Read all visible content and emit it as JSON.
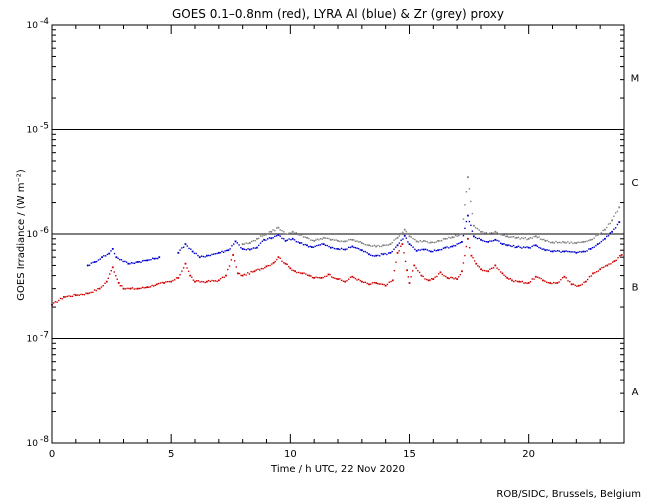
{
  "chart_data": {
    "type": "scatter",
    "title": "GOES 0.1–0.8nm (red), LYRA Al (blue) & Zr (grey) proxy",
    "xlabel": "Time / h UTC, 22 Nov 2020",
    "ylabel": "GOES Irradiance / (W m⁻²)",
    "xlim": [
      0,
      24
    ],
    "ylim": [
      1e-08,
      0.0001
    ],
    "yscale": "log",
    "x_ticks": [
      0,
      5,
      10,
      15,
      20
    ],
    "x_tick_labels": [
      "0",
      "5",
      "10",
      "15",
      "20"
    ],
    "y_ticks": [
      1e-08,
      1e-07,
      1e-06,
      1e-05,
      0.0001
    ],
    "y_tick_labels": [
      {
        "base": "10",
        "exp": "-8"
      },
      {
        "base": "10",
        "exp": "-7"
      },
      {
        "base": "10",
        "exp": "-6"
      },
      {
        "base": "10",
        "exp": "-5"
      },
      {
        "base": "10",
        "exp": "-4"
      }
    ],
    "reference_lines": [
      1e-07,
      1e-06,
      1e-05
    ],
    "flare_classes": [
      {
        "label": "A",
        "value": 3.16e-08
      },
      {
        "label": "B",
        "value": 3.16e-07
      },
      {
        "label": "C",
        "value": 3.16e-06
      },
      {
        "label": "M",
        "value": 3.16e-05
      }
    ],
    "series": [
      {
        "color": "#d00000",
        "x": [
          0.0,
          0.5,
          1.0,
          1.5,
          2.0,
          2.3,
          2.55,
          2.8,
          3.0,
          3.3,
          3.6,
          4.0,
          4.4,
          4.7,
          5.0,
          5.3,
          5.6,
          5.8,
          6.0,
          6.5,
          7.0,
          7.3,
          7.6,
          7.8,
          8.0,
          8.5,
          9.0,
          9.3,
          9.5,
          9.8,
          10.0,
          10.2,
          10.5,
          10.8,
          11.0,
          11.3,
          11.6,
          12.0,
          12.3,
          12.6,
          13.0,
          13.3,
          13.6,
          14.0,
          14.3,
          14.5,
          14.7,
          14.9,
          15.0,
          15.2,
          15.5,
          15.8,
          16.0,
          16.3,
          16.6,
          17.0,
          17.2,
          17.45,
          17.6,
          17.8,
          18.0,
          18.3,
          18.6,
          18.9,
          19.1,
          19.3,
          19.6,
          20.0,
          20.3,
          20.6,
          20.9,
          21.2,
          21.5,
          21.8,
          22.1,
          22.4,
          22.7,
          23.0,
          23.3,
          23.6,
          23.9
        ],
        "y": [
          2.1e-07,
          2.5e-07,
          2.6e-07,
          2.7e-07,
          3e-07,
          3.5e-07,
          4.8e-07,
          3.4e-07,
          3e-07,
          3e-07,
          3e-07,
          3.1e-07,
          3.3e-07,
          3.4e-07,
          3.5e-07,
          3.8e-07,
          5.2e-07,
          4e-07,
          3.5e-07,
          3.5e-07,
          3.6e-07,
          4e-07,
          6.3e-07,
          4.2e-07,
          4e-07,
          4.4e-07,
          4.9e-07,
          5.3e-07,
          6e-07,
          5.2e-07,
          4.7e-07,
          4.4e-07,
          4.2e-07,
          4e-07,
          3.8e-07,
          3.8e-07,
          4.1e-07,
          3.7e-07,
          3.5e-07,
          3.9e-07,
          3.5e-07,
          3.3e-07,
          3.4e-07,
          3.2e-07,
          3.6e-07,
          6.6e-07,
          8e-07,
          4.5e-07,
          3.4e-07,
          5e-07,
          4e-07,
          3.6e-07,
          3.7e-07,
          4.3e-07,
          3.8e-07,
          3.7e-07,
          4.4e-07,
          9e-07,
          6.2e-07,
          5.2e-07,
          4.6e-07,
          4.4e-07,
          5e-07,
          4.2e-07,
          3.8e-07,
          3.6e-07,
          3.5e-07,
          3.4e-07,
          3.9e-07,
          3.6e-07,
          3.4e-07,
          3.4e-07,
          3.9e-07,
          3.3e-07,
          3.2e-07,
          3.5e-07,
          4.2e-07,
          4.6e-07,
          5e-07,
          5.5e-07,
          6.3e-07
        ]
      },
      {
        "color": "#0000cc",
        "x": [
          1.5,
          1.8,
          2.1,
          2.4,
          2.55,
          2.7,
          3.2,
          3.6,
          4.0,
          4.3,
          4.5,
          5.3,
          5.6,
          5.9,
          6.2,
          6.5,
          7.0,
          7.4,
          7.7,
          8.0,
          8.3,
          8.6,
          8.9,
          9.2,
          9.5,
          9.8,
          10.1,
          10.4,
          10.7,
          10.9,
          11.4,
          11.7,
          12.0,
          12.3,
          12.6,
          13.0,
          13.3,
          13.6,
          13.9,
          14.2,
          14.5,
          14.8,
          15.0,
          15.3,
          15.6,
          15.9,
          16.2,
          16.5,
          16.8,
          17.2,
          17.45,
          17.7,
          18.0,
          18.3,
          18.6,
          18.9,
          19.1,
          19.5,
          20.0,
          20.3,
          20.7,
          21.0,
          21.5,
          22.0,
          22.3,
          22.6,
          22.9,
          23.2,
          23.5,
          23.8
        ],
        "y": [
          5e-07,
          5.4e-07,
          6e-07,
          6.5e-07,
          7.2e-07,
          6e-07,
          5.2e-07,
          5.4e-07,
          5.6e-07,
          5.8e-07,
          6e-07,
          6.6e-07,
          8e-07,
          6.8e-07,
          6e-07,
          6.2e-07,
          6.6e-07,
          7e-07,
          8.5e-07,
          7.2e-07,
          7.1e-07,
          7.4e-07,
          8.8e-07,
          9.1e-07,
          9.8e-07,
          8.6e-07,
          9e-07,
          8.2e-07,
          7.8e-07,
          7.5e-07,
          8e-07,
          7.4e-07,
          7.2e-07,
          7.1e-07,
          7.6e-07,
          7e-07,
          6.4e-07,
          6.2e-07,
          6.4e-07,
          6.6e-07,
          7.8e-07,
          9.6e-07,
          8e-07,
          6.9e-07,
          7.1e-07,
          6.8e-07,
          7e-07,
          7.4e-07,
          7.6e-07,
          8.4e-07,
          1.5e-06,
          9.5e-07,
          8.8e-07,
          8.4e-07,
          8.8e-07,
          8e-07,
          7.8e-07,
          7.5e-07,
          7.4e-07,
          7.8e-07,
          7e-07,
          6.8e-07,
          6.8e-07,
          6.6e-07,
          6.8e-07,
          7.2e-07,
          8e-07,
          9e-07,
          1.05e-06,
          1.3e-06
        ]
      },
      {
        "color": "#808080",
        "x": [
          8.0,
          8.3,
          8.6,
          8.9,
          9.2,
          9.5,
          9.8,
          10.1,
          10.4,
          10.7,
          11.0,
          11.4,
          11.7,
          12.0,
          12.3,
          12.6,
          13.0,
          13.3,
          13.6,
          13.9,
          14.2,
          14.5,
          14.8,
          15.0,
          15.3,
          15.6,
          15.9,
          16.2,
          16.5,
          16.8,
          17.2,
          17.45,
          17.7,
          18.0,
          18.3,
          18.6,
          18.9,
          19.1,
          19.5,
          20.0,
          20.3,
          20.7,
          21.0,
          21.5,
          22.0,
          22.3,
          22.6,
          22.9,
          23.2,
          23.5,
          23.8
        ],
        "y": [
          8e-07,
          8.2e-07,
          9e-07,
          9.8e-07,
          1.05e-06,
          1.15e-06,
          1e-06,
          1.05e-06,
          9.8e-07,
          9.2e-07,
          8.6e-07,
          9.2e-07,
          8.8e-07,
          8.6e-07,
          8.5e-07,
          8.8e-07,
          8.2e-07,
          7.8e-07,
          7.6e-07,
          7.8e-07,
          8e-07,
          9.2e-07,
          1.1e-06,
          9.5e-07,
          8.5e-07,
          8.6e-07,
          8.3e-07,
          8.6e-07,
          9e-07,
          9.3e-07,
          1e-06,
          3.5e-06,
          1.2e-06,
          1.05e-06,
          1e-06,
          1.05e-06,
          9.8e-07,
          9.5e-07,
          9.2e-07,
          9e-07,
          9.5e-07,
          8.6e-07,
          8.3e-07,
          8.3e-07,
          8.2e-07,
          8.4e-07,
          8.8e-07,
          9.8e-07,
          1.1e-06,
          1.35e-06,
          1.8e-06
        ]
      }
    ],
    "credit": "ROB/SIDC, Brussels, Belgium"
  }
}
